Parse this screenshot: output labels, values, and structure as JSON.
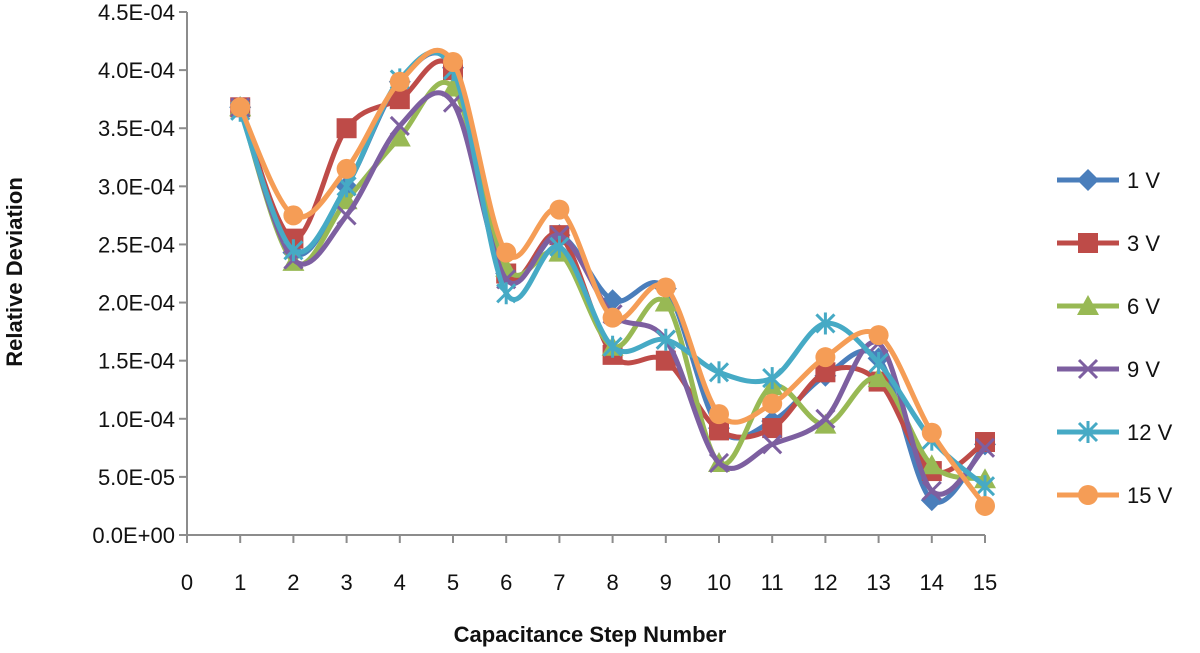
{
  "chart_data": {
    "type": "line",
    "title": "",
    "xlabel": "Capacitance  Step Number",
    "ylabel": "Relative Deviation",
    "xlim": [
      0,
      15
    ],
    "ylim": [
      0,
      0.00045
    ],
    "x_ticks": [
      "0",
      "1",
      "2",
      "3",
      "4",
      "5",
      "6",
      "7",
      "8",
      "9",
      "10",
      "11",
      "12",
      "13",
      "14",
      "15"
    ],
    "y_ticks": [
      "0.0E+00",
      "5.0E-05",
      "1.0E-04",
      "1.5E-04",
      "2.0E-04",
      "2.5E-04",
      "3.0E-04",
      "3.5E-04",
      "4.0E-04",
      "4.5E-04"
    ],
    "y_tick_values": [
      0,
      5e-05,
      0.0001,
      0.00015,
      0.0002,
      0.00025,
      0.0003,
      0.00035,
      0.0004,
      0.00045
    ],
    "grid": false,
    "smooth": true,
    "legend_position": "right",
    "x": [
      1,
      2,
      3,
      4,
      5,
      6,
      7,
      8,
      9,
      10,
      11,
      12,
      13,
      14,
      15
    ],
    "series": [
      {
        "name": "1 V",
        "color": "#4a7ebb",
        "marker": "diamond",
        "values": [
          0.000368,
          0.000243,
          0.0003,
          0.00039,
          0.000402,
          0.000225,
          0.000258,
          0.000202,
          0.000212,
          9.2e-05,
          9.8e-05,
          0.000137,
          0.000152,
          3e-05,
          7.8e-05
        ]
      },
      {
        "name": "3 V",
        "color": "#be4b48",
        "marker": "square",
        "values": [
          0.000368,
          0.000255,
          0.00035,
          0.000375,
          0.0004,
          0.000225,
          0.000258,
          0.000155,
          0.00015,
          9e-05,
          9.2e-05,
          0.00014,
          0.000132,
          5.5e-05,
          8e-05
        ]
      },
      {
        "name": "6 V",
        "color": "#98b954",
        "marker": "triangle",
        "values": [
          0.000368,
          0.000235,
          0.000288,
          0.000342,
          0.000385,
          0.00023,
          0.000243,
          0.000162,
          0.0002,
          6.2e-05,
          0.000128,
          9.5e-05,
          0.000135,
          6e-05,
          4.8e-05
        ]
      },
      {
        "name": "9 V",
        "color": "#7d5fa0",
        "marker": "x",
        "values": [
          0.000368,
          0.000237,
          0.000275,
          0.000352,
          0.000372,
          0.00022,
          0.000258,
          0.00019,
          0.000168,
          6.2e-05,
          7.8e-05,
          0.0001,
          0.000165,
          3.8e-05,
          7.5e-05
        ]
      },
      {
        "name": "12 V",
        "color": "#46aac5",
        "marker": "asterisk",
        "values": [
          0.000365,
          0.000245,
          0.0003,
          0.000392,
          0.0004,
          0.000208,
          0.000248,
          0.000162,
          0.000168,
          0.00014,
          0.000135,
          0.000182,
          0.000148,
          8.2e-05,
          4.2e-05
        ]
      },
      {
        "name": "15 V",
        "color": "#f59d56",
        "marker": "circle",
        "values": [
          0.000368,
          0.000275,
          0.000315,
          0.00039,
          0.000407,
          0.000243,
          0.00028,
          0.000187,
          0.000213,
          0.000104,
          0.000113,
          0.000153,
          0.000172,
          8.8e-05,
          2.5e-05
        ]
      }
    ]
  }
}
